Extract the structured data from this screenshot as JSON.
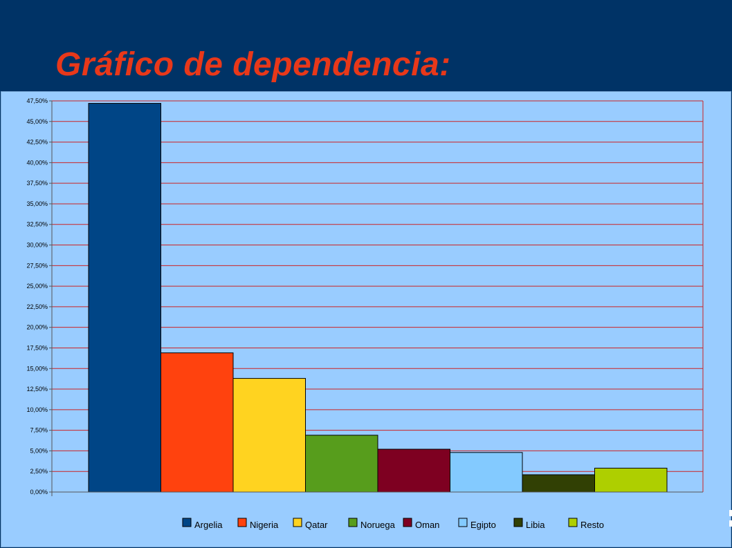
{
  "slide": {
    "title": "Gráfico de dependencia:"
  },
  "colors": {
    "header_bg": "#003366",
    "title": "#e8381a",
    "plot_bg": "#99ccff",
    "grid": "#cc2222"
  },
  "chart_data": {
    "type": "bar",
    "categories": [
      "Argelia",
      "Nigeria",
      "Qatar",
      "Noruega",
      "Oman",
      "Egipto",
      "Libia",
      "Resto"
    ],
    "values": [
      47.2,
      16.9,
      13.8,
      6.9,
      5.2,
      4.8,
      2.1,
      2.9
    ],
    "colors": [
      "#004586",
      "#ff420e",
      "#ffd320",
      "#579d1c",
      "#7e0021",
      "#83caff",
      "#314004",
      "#aecf00"
    ],
    "ylim": [
      0,
      47.5
    ],
    "ytick_step": 2.5,
    "ytick_labels": [
      "0,00%",
      "2,50%",
      "5,00%",
      "7,50%",
      "10,00%",
      "12,50%",
      "15,00%",
      "17,50%",
      "20,00%",
      "22,50%",
      "25,00%",
      "27,50%",
      "30,00%",
      "32,50%",
      "35,00%",
      "37,50%",
      "40,00%",
      "42,50%",
      "45,00%",
      "47,50%"
    ],
    "grid": true,
    "legend": {
      "position": "bottom",
      "entries": [
        "Argelia",
        "Nigeria",
        "Qatar",
        "Noruega",
        "Oman",
        "Egipto",
        "Libia",
        "Resto"
      ]
    },
    "xlabel": "",
    "ylabel": ""
  }
}
